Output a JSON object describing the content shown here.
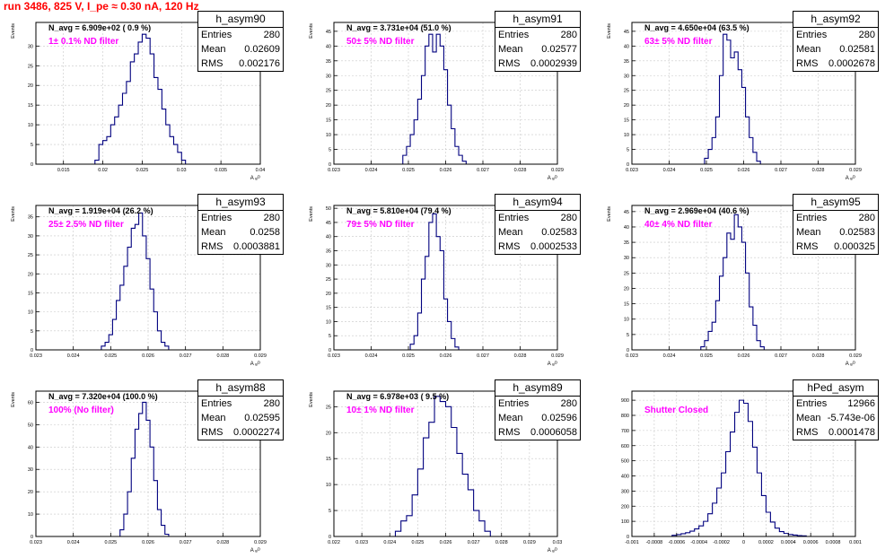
{
  "header": {
    "title": "run 3486,   825 V, I_pe ≈ 0.30 nA, 120 Hz"
  },
  "style": {
    "title_color": "#ff0000",
    "hist_color": "#00007f",
    "label_color": "#ff00ff",
    "axis_color": "#000000",
    "grid_color": "#c8c8c8"
  },
  "stats_labels": {
    "entries": "Entries",
    "mean": "Mean",
    "rms": "RMS"
  },
  "chart_data": [
    {
      "type": "histogram",
      "name": "h_asym90",
      "title": "N_avg = 6.909e+02 ( 0.9 %)",
      "label": "1± 0.1% ND filter",
      "ylabel": "Events",
      "xlabel": "A ᵤᵢᴰ",
      "xlim": [
        0.0115,
        0.04
      ],
      "ylim": [
        0,
        36
      ],
      "xticks": [
        0.015,
        0.02,
        0.025,
        0.03,
        0.035,
        0.04
      ],
      "xticklabels": [
        "0.015",
        "0.02",
        "0.025",
        "0.03",
        "0.035",
        "0.04"
      ],
      "yticks": [
        0,
        5,
        10,
        15,
        20,
        25,
        30
      ],
      "grid": true,
      "stats": {
        "entries": "280",
        "mean": "0.02609",
        "rms": "0.002176"
      },
      "bins": [
        [
          0.019,
          0.0195,
          1
        ],
        [
          0.0195,
          0.02,
          5
        ],
        [
          0.02,
          0.0205,
          6
        ],
        [
          0.0205,
          0.021,
          7
        ],
        [
          0.021,
          0.0215,
          10
        ],
        [
          0.0215,
          0.022,
          12
        ],
        [
          0.022,
          0.0225,
          15
        ],
        [
          0.0225,
          0.023,
          18
        ],
        [
          0.023,
          0.0235,
          21
        ],
        [
          0.0235,
          0.024,
          26
        ],
        [
          0.024,
          0.0245,
          28
        ],
        [
          0.0245,
          0.025,
          31
        ],
        [
          0.025,
          0.0255,
          33
        ],
        [
          0.0255,
          0.026,
          32
        ],
        [
          0.026,
          0.0265,
          28
        ],
        [
          0.0265,
          0.027,
          22
        ],
        [
          0.027,
          0.0275,
          19
        ],
        [
          0.0275,
          0.028,
          14
        ],
        [
          0.028,
          0.0285,
          10
        ],
        [
          0.0285,
          0.029,
          7
        ],
        [
          0.029,
          0.0295,
          5
        ],
        [
          0.0295,
          0.03,
          3
        ],
        [
          0.03,
          0.0305,
          1
        ]
      ]
    },
    {
      "type": "histogram",
      "name": "h_asym91",
      "title": "N_avg = 3.731e+04 (51.0 %)",
      "label": "50± 5% ND filter",
      "ylabel": "Events",
      "xlabel": "A ᵤᵢᴰ",
      "xlim": [
        0.023,
        0.029
      ],
      "ylim": [
        0,
        48
      ],
      "xticks": [
        0.023,
        0.024,
        0.025,
        0.026,
        0.027,
        0.028,
        0.029
      ],
      "xticklabels": [
        "0.023",
        "0.024",
        "0.025",
        "0.026",
        "0.027",
        "0.028",
        "0.029"
      ],
      "yticks": [
        0,
        5,
        10,
        15,
        20,
        25,
        30,
        35,
        40,
        45
      ],
      "grid": true,
      "stats": {
        "entries": "280",
        "mean": "0.02577",
        "rms": "0.0002939"
      },
      "bins": [
        [
          0.02485,
          0.02495,
          3
        ],
        [
          0.02495,
          0.02505,
          6
        ],
        [
          0.02505,
          0.02515,
          10
        ],
        [
          0.02515,
          0.02525,
          15
        ],
        [
          0.02525,
          0.02535,
          22
        ],
        [
          0.02535,
          0.02545,
          30
        ],
        [
          0.02545,
          0.02555,
          40
        ],
        [
          0.02555,
          0.02565,
          44
        ],
        [
          0.02565,
          0.02575,
          38
        ],
        [
          0.02575,
          0.02585,
          44
        ],
        [
          0.02585,
          0.02595,
          40
        ],
        [
          0.02595,
          0.02605,
          32
        ],
        [
          0.02605,
          0.02615,
          20
        ],
        [
          0.02615,
          0.02625,
          12
        ],
        [
          0.02625,
          0.02635,
          6
        ],
        [
          0.02635,
          0.02645,
          3
        ],
        [
          0.02645,
          0.02655,
          1
        ]
      ]
    },
    {
      "type": "histogram",
      "name": "h_asym92",
      "title": "N_avg = 4.650e+04 (63.5 %)",
      "label": "63± 5% ND filter",
      "ylabel": "Events",
      "xlabel": "A ᵤᵢᴰ",
      "xlim": [
        0.023,
        0.029
      ],
      "ylim": [
        0,
        48
      ],
      "xticks": [
        0.023,
        0.024,
        0.025,
        0.026,
        0.027,
        0.028,
        0.029
      ],
      "xticklabels": [
        "0.023",
        "0.024",
        "0.025",
        "0.026",
        "0.027",
        "0.028",
        "0.029"
      ],
      "yticks": [
        0,
        5,
        10,
        15,
        20,
        25,
        30,
        35,
        40,
        45
      ],
      "grid": true,
      "stats": {
        "entries": "280",
        "mean": "0.02581",
        "rms": "0.0002678"
      },
      "bins": [
        [
          0.02495,
          0.02505,
          2
        ],
        [
          0.02505,
          0.02515,
          5
        ],
        [
          0.02515,
          0.02525,
          9
        ],
        [
          0.02525,
          0.02535,
          16
        ],
        [
          0.02535,
          0.02545,
          30
        ],
        [
          0.02545,
          0.02555,
          44
        ],
        [
          0.02555,
          0.02565,
          42
        ],
        [
          0.02565,
          0.02575,
          36
        ],
        [
          0.02575,
          0.02585,
          38
        ],
        [
          0.02585,
          0.02595,
          32
        ],
        [
          0.02595,
          0.02605,
          26
        ],
        [
          0.02605,
          0.02615,
          16
        ],
        [
          0.02615,
          0.02625,
          9
        ],
        [
          0.02625,
          0.02635,
          4
        ],
        [
          0.02635,
          0.02645,
          1
        ]
      ]
    },
    {
      "type": "histogram",
      "name": "h_asym93",
      "title": "N_avg = 1.919e+04 (26.2 %)",
      "label": "25± 2.5% ND filter",
      "ylabel": "Events",
      "xlabel": "A ᵤᵢᴰ",
      "xlim": [
        0.023,
        0.029
      ],
      "ylim": [
        0,
        38
      ],
      "xticks": [
        0.023,
        0.024,
        0.025,
        0.026,
        0.027,
        0.028,
        0.029
      ],
      "xticklabels": [
        "0.023",
        "0.024",
        "0.025",
        "0.026",
        "0.027",
        "0.028",
        "0.029"
      ],
      "yticks": [
        0,
        5,
        10,
        15,
        20,
        25,
        30,
        35
      ],
      "grid": true,
      "stats": {
        "entries": "280",
        "mean": "0.0258",
        "rms": "0.0003881"
      },
      "bins": [
        [
          0.02475,
          0.02485,
          1
        ],
        [
          0.02485,
          0.02495,
          2
        ],
        [
          0.02495,
          0.02505,
          4
        ],
        [
          0.02505,
          0.02515,
          8
        ],
        [
          0.02515,
          0.02525,
          13
        ],
        [
          0.02525,
          0.02535,
          17
        ],
        [
          0.02535,
          0.02545,
          22
        ],
        [
          0.02545,
          0.02555,
          27
        ],
        [
          0.02555,
          0.02565,
          32
        ],
        [
          0.02565,
          0.02575,
          33
        ],
        [
          0.02575,
          0.02585,
          36
        ],
        [
          0.02585,
          0.02595,
          30
        ],
        [
          0.02595,
          0.02605,
          24
        ],
        [
          0.02605,
          0.02615,
          16
        ],
        [
          0.02615,
          0.02625,
          10
        ],
        [
          0.02625,
          0.02635,
          5
        ],
        [
          0.02635,
          0.02645,
          2
        ],
        [
          0.02645,
          0.02655,
          1
        ]
      ]
    },
    {
      "type": "histogram",
      "name": "h_asym94",
      "title": "N_avg = 5.810e+04 (79.4 %)",
      "label": "79± 5% ND filter",
      "ylabel": "Events",
      "xlabel": "A ᵤᵢᴰ",
      "xlim": [
        0.023,
        0.029
      ],
      "ylim": [
        0,
        51
      ],
      "xticks": [
        0.023,
        0.024,
        0.025,
        0.026,
        0.027,
        0.028,
        0.029
      ],
      "xticklabels": [
        "0.023",
        "0.024",
        "0.025",
        "0.026",
        "0.027",
        "0.028",
        "0.029"
      ],
      "yticks": [
        0,
        5,
        10,
        15,
        20,
        25,
        30,
        35,
        40,
        45,
        50
      ],
      "grid": true,
      "stats": {
        "entries": "280",
        "mean": "0.02583",
        "rms": "0.0002533"
      },
      "bins": [
        [
          0.02505,
          0.02515,
          2
        ],
        [
          0.02515,
          0.02525,
          5
        ],
        [
          0.02525,
          0.02535,
          13
        ],
        [
          0.02535,
          0.02545,
          25
        ],
        [
          0.02545,
          0.02555,
          33
        ],
        [
          0.02555,
          0.02565,
          45
        ],
        [
          0.02565,
          0.02575,
          48
        ],
        [
          0.02575,
          0.02585,
          40
        ],
        [
          0.02585,
          0.02595,
          35
        ],
        [
          0.02595,
          0.02605,
          18
        ],
        [
          0.02605,
          0.02615,
          10
        ],
        [
          0.02615,
          0.02625,
          4
        ],
        [
          0.02625,
          0.02635,
          1
        ]
      ]
    },
    {
      "type": "histogram",
      "name": "h_asym95",
      "title": "N_avg = 2.969e+04 (40.6 %)",
      "label": "40± 4% ND filter",
      "ylabel": "Events",
      "xlabel": "A ᵤᵢᴰ",
      "xlim": [
        0.023,
        0.029
      ],
      "ylim": [
        0,
        47
      ],
      "xticks": [
        0.023,
        0.024,
        0.025,
        0.026,
        0.027,
        0.028,
        0.029
      ],
      "xticklabels": [
        "0.023",
        "0.024",
        "0.025",
        "0.026",
        "0.027",
        "0.028",
        "0.029"
      ],
      "yticks": [
        0,
        5,
        10,
        15,
        20,
        25,
        30,
        35,
        40,
        45
      ],
      "grid": true,
      "stats": {
        "entries": "280",
        "mean": "0.02583",
        "rms": "0.000325"
      },
      "bins": [
        [
          0.02485,
          0.02495,
          1
        ],
        [
          0.02495,
          0.02505,
          3
        ],
        [
          0.02505,
          0.02515,
          6
        ],
        [
          0.02515,
          0.02525,
          9
        ],
        [
          0.02525,
          0.02535,
          16
        ],
        [
          0.02535,
          0.02545,
          24
        ],
        [
          0.02545,
          0.02555,
          30
        ],
        [
          0.02555,
          0.02565,
          38
        ],
        [
          0.02565,
          0.02575,
          36
        ],
        [
          0.02575,
          0.02585,
          44
        ],
        [
          0.02585,
          0.02595,
          40
        ],
        [
          0.02595,
          0.02605,
          35
        ],
        [
          0.02605,
          0.02615,
          25
        ],
        [
          0.02615,
          0.02625,
          14
        ],
        [
          0.02625,
          0.02635,
          8
        ],
        [
          0.02635,
          0.02645,
          3
        ],
        [
          0.02645,
          0.02655,
          1
        ]
      ]
    },
    {
      "type": "histogram",
      "name": "h_asym88",
      "title": "N_avg = 7.320e+04 (100.0 %)",
      "label": "100% (No filter)",
      "ylabel": "Events",
      "xlabel": "A ᵤᵢᴰ",
      "xlim": [
        0.023,
        0.029
      ],
      "ylim": [
        0,
        65
      ],
      "xticks": [
        0.023,
        0.024,
        0.025,
        0.026,
        0.027,
        0.028,
        0.029
      ],
      "xticklabels": [
        "0.023",
        "0.024",
        "0.025",
        "0.026",
        "0.027",
        "0.028",
        "0.029"
      ],
      "yticks": [
        0,
        10,
        20,
        30,
        40,
        50,
        60
      ],
      "grid": true,
      "stats": {
        "entries": "280",
        "mean": "0.02595",
        "rms": "0.0002274"
      },
      "bins": [
        [
          0.02525,
          0.02535,
          3
        ],
        [
          0.02535,
          0.02545,
          10
        ],
        [
          0.02545,
          0.02555,
          20
        ],
        [
          0.02555,
          0.02565,
          35
        ],
        [
          0.02565,
          0.02575,
          48
        ],
        [
          0.02575,
          0.02585,
          55
        ],
        [
          0.02585,
          0.02595,
          60
        ],
        [
          0.02595,
          0.02605,
          52
        ],
        [
          0.02605,
          0.02615,
          40
        ],
        [
          0.02615,
          0.02625,
          25
        ],
        [
          0.02625,
          0.02635,
          12
        ],
        [
          0.02635,
          0.02645,
          5
        ],
        [
          0.02645,
          0.02655,
          1
        ]
      ]
    },
    {
      "type": "histogram",
      "name": "h_asym89",
      "title": "N_avg = 6.978e+03 ( 9.5 %)",
      "label": "10± 1% ND filter",
      "ylabel": "Events",
      "xlabel": "A ᵤᵢᴰ",
      "xlim": [
        0.022,
        0.03
      ],
      "ylim": [
        0,
        28
      ],
      "xticks": [
        0.022,
        0.023,
        0.024,
        0.025,
        0.026,
        0.027,
        0.028,
        0.029,
        0.03
      ],
      "xticklabels": [
        "0.022",
        "0.023",
        "0.024",
        "0.025",
        "0.026",
        "0.027",
        "0.028",
        "0.029",
        "0.03"
      ],
      "yticks": [
        0,
        5,
        10,
        15,
        20,
        25
      ],
      "grid": true,
      "stats": {
        "entries": "280",
        "mean": "0.02596",
        "rms": "0.0006058"
      },
      "bins": [
        [
          0.0242,
          0.0244,
          1
        ],
        [
          0.0244,
          0.0246,
          3
        ],
        [
          0.0246,
          0.0248,
          4
        ],
        [
          0.0248,
          0.025,
          8
        ],
        [
          0.025,
          0.0252,
          13
        ],
        [
          0.0252,
          0.0254,
          19
        ],
        [
          0.0254,
          0.0256,
          22
        ],
        [
          0.0256,
          0.0258,
          27
        ],
        [
          0.0258,
          0.026,
          26
        ],
        [
          0.026,
          0.0262,
          25
        ],
        [
          0.0262,
          0.0264,
          21
        ],
        [
          0.0264,
          0.0266,
          16
        ],
        [
          0.0266,
          0.0268,
          12
        ],
        [
          0.0268,
          0.027,
          9
        ],
        [
          0.027,
          0.0272,
          5
        ],
        [
          0.0272,
          0.0274,
          3
        ],
        [
          0.0274,
          0.0276,
          1
        ]
      ]
    },
    {
      "type": "histogram",
      "name": "hPed_asym",
      "title": "",
      "label": "Shutter Closed",
      "ylabel": "",
      "xlabel": "",
      "xlim": [
        -0.001,
        0.001
      ],
      "ylim": [
        0,
        960
      ],
      "xticks": [
        -0.001,
        -0.0008,
        -0.0006,
        -0.0004,
        -0.0002,
        0,
        0.0002,
        0.0004,
        0.0006,
        0.0008,
        0.001
      ],
      "xticklabels": [
        "-0.001",
        "-0.0008",
        "-0.0006",
        "-0.0004",
        "-0.0002",
        "0",
        "0.0002",
        "0.0004",
        "0.0006",
        "0.0008",
        "0.001"
      ],
      "yticks": [
        0,
        100,
        200,
        300,
        400,
        500,
        600,
        700,
        800,
        900
      ],
      "grid": true,
      "stats": {
        "entries": "12966",
        "mean": "-5.743e-06",
        "rms": "0.0001478"
      },
      "bins": [
        [
          -0.00064,
          -0.0006,
          8
        ],
        [
          -0.0006,
          -0.00056,
          12
        ],
        [
          -0.00056,
          -0.00052,
          18
        ],
        [
          -0.00052,
          -0.00048,
          25
        ],
        [
          -0.00048,
          -0.00044,
          35
        ],
        [
          -0.00044,
          -0.0004,
          50
        ],
        [
          -0.0004,
          -0.00036,
          70
        ],
        [
          -0.00036,
          -0.00032,
          100
        ],
        [
          -0.00032,
          -0.00028,
          150
        ],
        [
          -0.00028,
          -0.00024,
          220
        ],
        [
          -0.00024,
          -0.0002,
          320
        ],
        [
          -0.0002,
          -0.00016,
          420
        ],
        [
          -0.00016,
          -0.00012,
          560
        ],
        [
          -0.00012,
          -8e-05,
          690
        ],
        [
          -8e-05,
          -4e-05,
          820
        ],
        [
          -4e-05,
          0,
          900
        ],
        [
          0,
          4e-05,
          880
        ],
        [
          4e-05,
          8e-05,
          760
        ],
        [
          8e-05,
          0.00012,
          590
        ],
        [
          0.00012,
          0.00016,
          420
        ],
        [
          0.00016,
          0.0002,
          270
        ],
        [
          0.0002,
          0.00024,
          160
        ],
        [
          0.00024,
          0.00028,
          95
        ],
        [
          0.00028,
          0.00032,
          55
        ],
        [
          0.00032,
          0.00036,
          32
        ],
        [
          0.00036,
          0.0004,
          20
        ],
        [
          0.0004,
          0.00044,
          13
        ],
        [
          0.00044,
          0.00048,
          9
        ],
        [
          0.00048,
          0.00052,
          6
        ],
        [
          0.00052,
          0.00056,
          4
        ]
      ]
    }
  ]
}
